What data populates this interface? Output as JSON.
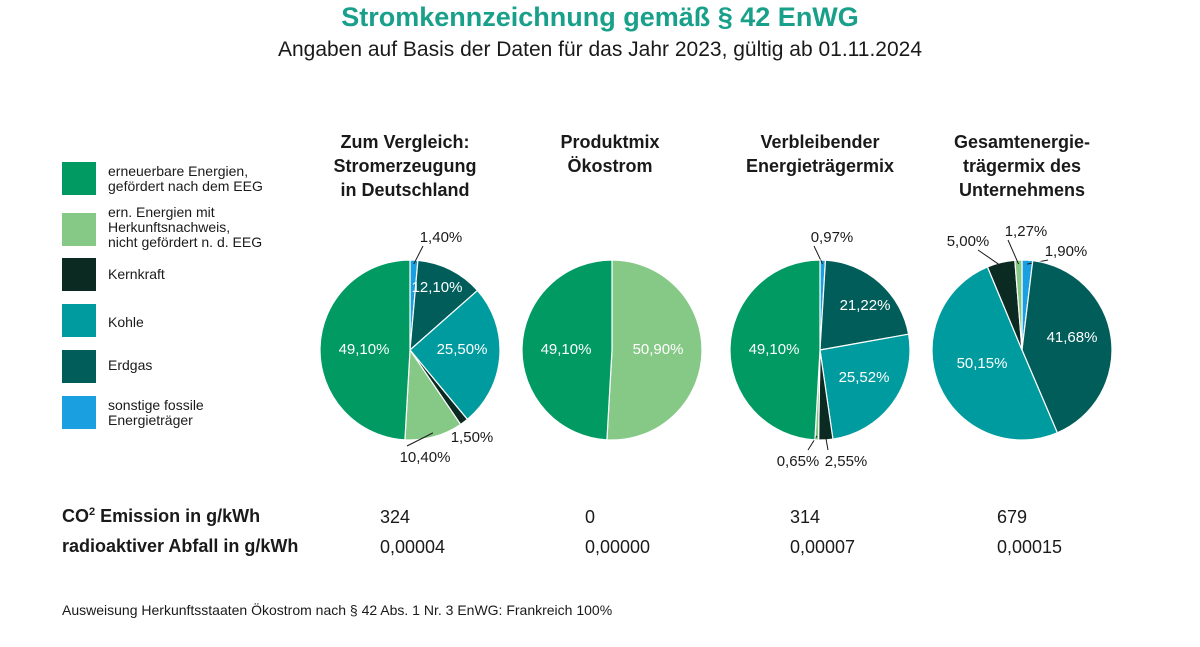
{
  "header": {
    "title": "Stromkennzeichnung gemäß § 42 EnWG",
    "subtitle": "Angaben auf Basis der Daten für das Jahr 2023, gültig ab 01.11.2024"
  },
  "legend": [
    {
      "label": "erneuerbare Energien,\ngefördert nach dem EEG",
      "color": "#009a62"
    },
    {
      "label": "ern. Energien mit\nHerkunftsnachweis,\nnicht gefördert n. d. EEG",
      "color": "#86c886"
    },
    {
      "label": "Kernkraft",
      "color": "#0b2a22"
    },
    {
      "label": "Kohle",
      "color": "#009b9f"
    },
    {
      "label": "Erdgas",
      "color": "#005d5a"
    },
    {
      "label": "sonstige fossile\nEnergieträger",
      "color": "#1a9fe0"
    }
  ],
  "chart_data": [
    {
      "type": "pie",
      "title": "Zum Vergleich:\nStromerzeugung\nin Deutschland",
      "slices": [
        {
          "category": "sonstige fossile Energieträger",
          "value": 1.4,
          "label": "1,40%"
        },
        {
          "category": "Erdgas",
          "value": 12.1,
          "label": "12,10%"
        },
        {
          "category": "Kohle",
          "value": 25.5,
          "label": "25,50%"
        },
        {
          "category": "Kernkraft",
          "value": 1.5,
          "label": "1,50%"
        },
        {
          "category": "ern. Energien mit Herkunftsnachweis",
          "value": 10.4,
          "label": "10,40%"
        },
        {
          "category": "erneuerbare Energien, gefördert nach dem EEG",
          "value": 49.1,
          "label": "49,10%"
        }
      ]
    },
    {
      "type": "pie",
      "title": "Produktmix\nÖkostrom",
      "slices": [
        {
          "category": "ern. Energien mit Herkunftsnachweis",
          "value": 50.9,
          "label": "50,90%"
        },
        {
          "category": "erneuerbare Energien, gefördert nach dem EEG",
          "value": 49.1,
          "label": "49,10%"
        }
      ]
    },
    {
      "type": "pie",
      "title": "Verbleibender\nEnergieträgermix",
      "slices": [
        {
          "category": "sonstige fossile Energieträger",
          "value": 0.97,
          "label": "0,97%"
        },
        {
          "category": "Erdgas",
          "value": 21.22,
          "label": "21,22%"
        },
        {
          "category": "Kohle",
          "value": 25.52,
          "label": "25,52%"
        },
        {
          "category": "Kernkraft",
          "value": 2.55,
          "label": "2,55%"
        },
        {
          "category": "ern. Energien mit Herkunftsnachweis",
          "value": 0.65,
          "label": "0,65%"
        },
        {
          "category": "erneuerbare Energien, gefördert nach dem EEG",
          "value": 49.1,
          "label": "49,10%"
        }
      ]
    },
    {
      "type": "pie",
      "title": "Gesamtenergie-\nträgermix des\nUnternehmens",
      "slices": [
        {
          "category": "sonstige fossile Energieträger",
          "value": 1.9,
          "label": "1,90%"
        },
        {
          "category": "Erdgas",
          "value": 41.68,
          "label": "41,68%"
        },
        {
          "category": "Kohle",
          "value": 50.15,
          "label": "50,15%"
        },
        {
          "category": "Kernkraft",
          "value": 5.0,
          "label": "5,00%"
        },
        {
          "category": "ern. Energien mit Herkunftsnachweis",
          "value": 1.27,
          "label": "1,27%"
        }
      ]
    }
  ],
  "table": {
    "co2_label": "Emission in g/kWh",
    "co2_prefix": "CO",
    "co2_sup": "2",
    "waste_label": "radioaktiver Abfall in g/kWh",
    "co2_values": [
      "324",
      "0",
      "314",
      "679"
    ],
    "waste_values": [
      "0,00004",
      "0,00000",
      "0,00007",
      "0,00015"
    ]
  },
  "footnote": "Ausweisung Herkunftsstaaten Ökostrom nach § 42 Abs. 1 Nr. 3 EnWG: Frankreich 100%"
}
